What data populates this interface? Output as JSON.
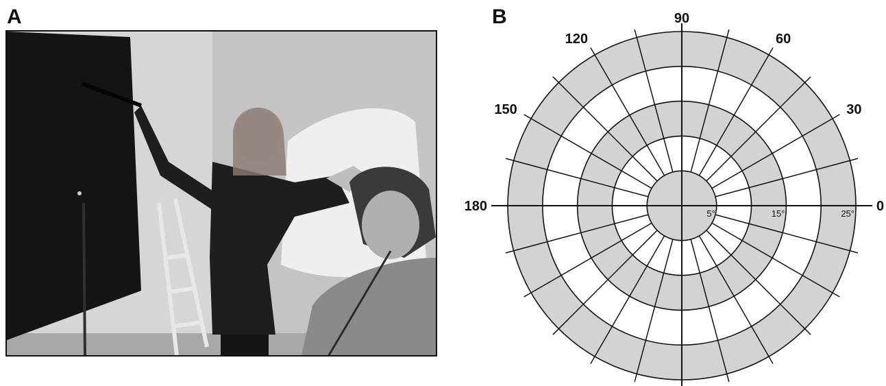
{
  "panels": {
    "a_label": "A",
    "b_label": "B"
  },
  "photo": {
    "subject": "clinician-measuring-visual-field-on-tangent-screen",
    "palette": {
      "wall": "#c9c9c9",
      "screen": "#141414",
      "scrubs_dark": "#1e1e1e",
      "scrubs_light": "#8a8a8a",
      "drape": "#efefef"
    }
  },
  "chart_data": {
    "type": "polar-grid",
    "meridians": [
      "0",
      "30",
      "60",
      "90",
      "120",
      "150",
      "180"
    ],
    "eccentricity_labels": [
      "5°",
      "15°",
      "25°"
    ],
    "ring_radii_deg": [
      5,
      10,
      15,
      20,
      25
    ],
    "shaded_ring_bands": [
      [
        0,
        5
      ],
      [
        10,
        15
      ],
      [
        20,
        25
      ]
    ],
    "spoke_interval_deg": 15,
    "spoke_start_radius_deg": 5,
    "colors": {
      "shade": "#d3d3d3",
      "line": "#111111",
      "background": "#ffffff"
    }
  }
}
